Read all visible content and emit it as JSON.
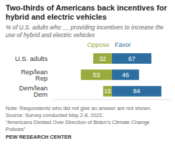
{
  "chart_data": {
    "type": "bar",
    "orientation": "horizontal",
    "title": "Two-thirds of Americans back incentives for hybrid and electric vehicles",
    "subtitle": "% of U.S. adults who __ providing incentives to increase the use of hybrid and electric vehicles",
    "categories": [
      "U.S. adults",
      "Rep/lean Rep",
      "Dem/lean Dem"
    ],
    "series": [
      {
        "name": "Oppose",
        "color": "#9aab3e",
        "values": [
          32,
          53,
          15
        ]
      },
      {
        "name": "Favor",
        "color": "#2c6e9f",
        "values": [
          67,
          46,
          84
        ]
      }
    ],
    "xlim": [
      0,
      100
    ],
    "tick_labels": "y",
    "data_labels": true,
    "annotations": [
      "Note: Respondents who did not give an answer are not shown.",
      "Source: Survey conducted May 2-8, 2022.",
      "“Americans Divided Over Direction of Biden’s Climate Change Policies”",
      "PEW RESEARCH CENTER"
    ]
  }
}
